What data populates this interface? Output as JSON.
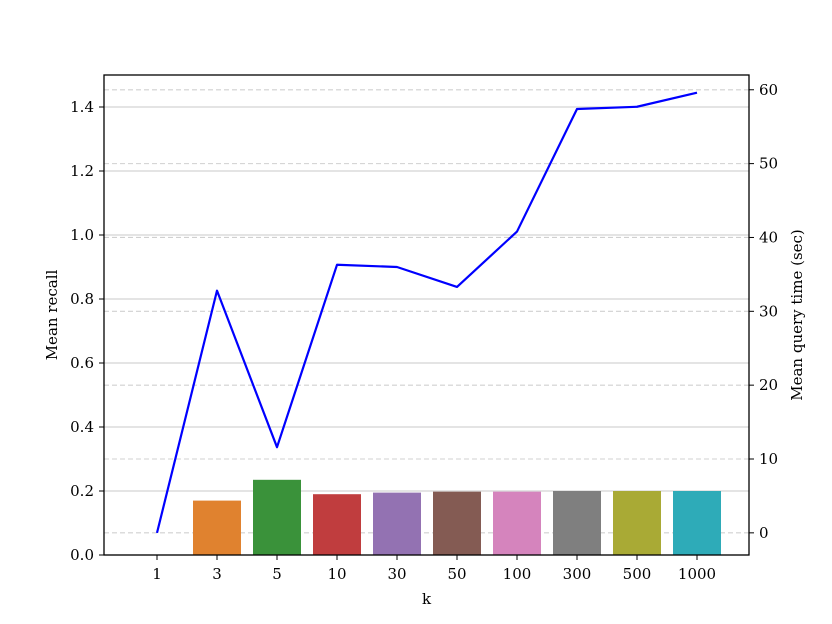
{
  "chart_data": {
    "type": "bar",
    "title": "",
    "xlabel": "k",
    "ylabel": "Mean recall",
    "y2label": "Mean query time (sec)",
    "categories": [
      "1",
      "3",
      "5",
      "10",
      "30",
      "50",
      "100",
      "300",
      "500",
      "1000"
    ],
    "ylim": [
      0,
      1.5
    ],
    "y2lim": [
      -3,
      62
    ],
    "yticks": [
      "0.0",
      "0.2",
      "0.4",
      "0.6",
      "0.8",
      "1.0",
      "1.2",
      "1.4"
    ],
    "y2ticks": [
      "0",
      "10",
      "20",
      "30",
      "40",
      "50",
      "60"
    ],
    "grid": true,
    "series": [
      {
        "kind": "bar",
        "axis": "left",
        "values": [
          0.0,
          0.17,
          0.235,
          0.19,
          0.195,
          0.198,
          0.198,
          0.2,
          0.2,
          0.2
        ],
        "colors": [
          "#1f77b4",
          "#e0822f",
          "#3a923a",
          "#c03d3e",
          "#9372b2",
          "#845b53",
          "#d584bd",
          "#7f7f7f",
          "#a9aa35",
          "#2eabb8"
        ]
      },
      {
        "kind": "line",
        "axis": "right",
        "color": "#0000ff",
        "values": [
          0.0,
          32.8,
          11.6,
          36.3,
          36.0,
          33.3,
          40.8,
          57.4,
          57.7,
          59.6
        ]
      }
    ]
  }
}
